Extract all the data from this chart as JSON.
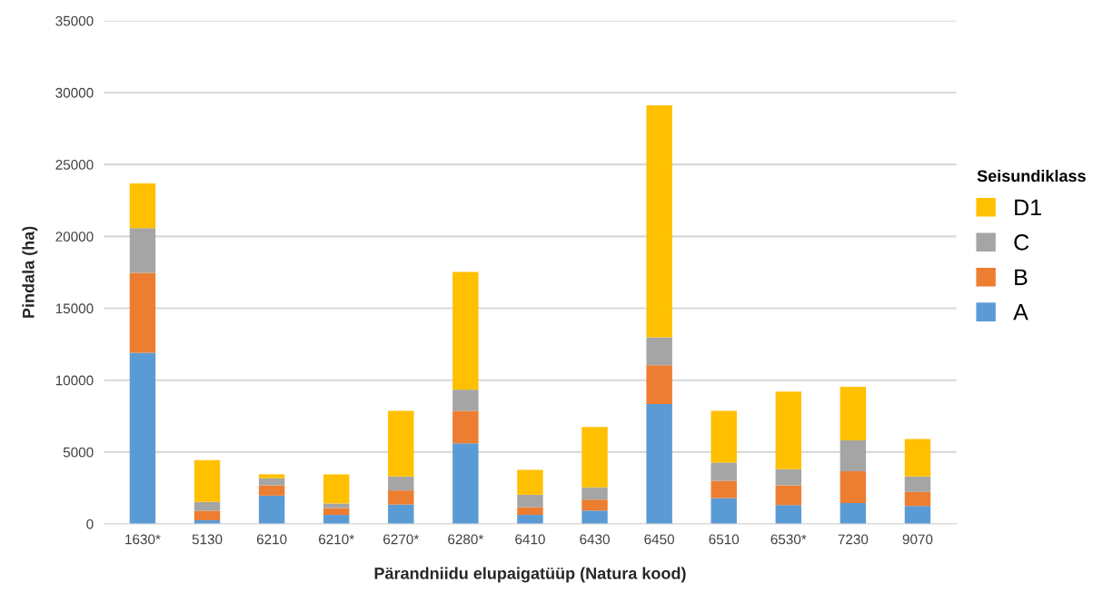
{
  "chart_data": {
    "type": "bar",
    "stacked": true,
    "xlabel": "Pärandniidu elupaigatüüp (Natura kood)",
    "ylabel": "Pindala (ha)",
    "legend_title": "Seisundiklass",
    "categories": [
      "1630*",
      "5130",
      "6210",
      "6210*",
      "6270*",
      "6280*",
      "6410",
      "6430",
      "6450",
      "6510",
      "6530*",
      "7230",
      "9070"
    ],
    "series": [
      {
        "name": "A",
        "color": "#5b9bd5",
        "values": [
          11900,
          250,
          1970,
          630,
          1350,
          5600,
          630,
          930,
          8330,
          1800,
          1310,
          1460,
          1250
        ]
      },
      {
        "name": "B",
        "color": "#ed7d31",
        "values": [
          5560,
          660,
          710,
          470,
          980,
          2260,
          530,
          760,
          2710,
          1200,
          1370,
          2200,
          970
        ]
      },
      {
        "name": "C",
        "color": "#a5a5a5",
        "values": [
          3110,
          630,
          490,
          320,
          970,
          1480,
          870,
          850,
          1940,
          1270,
          1130,
          2150,
          1080
        ]
      },
      {
        "name": "D1",
        "color": "#ffc000",
        "values": [
          3110,
          2900,
          280,
          2030,
          4560,
          8190,
          1730,
          4200,
          16130,
          3590,
          5390,
          3720,
          2600
        ]
      }
    ],
    "ylim": [
      0,
      35000
    ],
    "yticks": [
      0,
      5000,
      10000,
      15000,
      20000,
      25000,
      30000,
      35000
    ],
    "grid": "y",
    "legend": "right"
  }
}
